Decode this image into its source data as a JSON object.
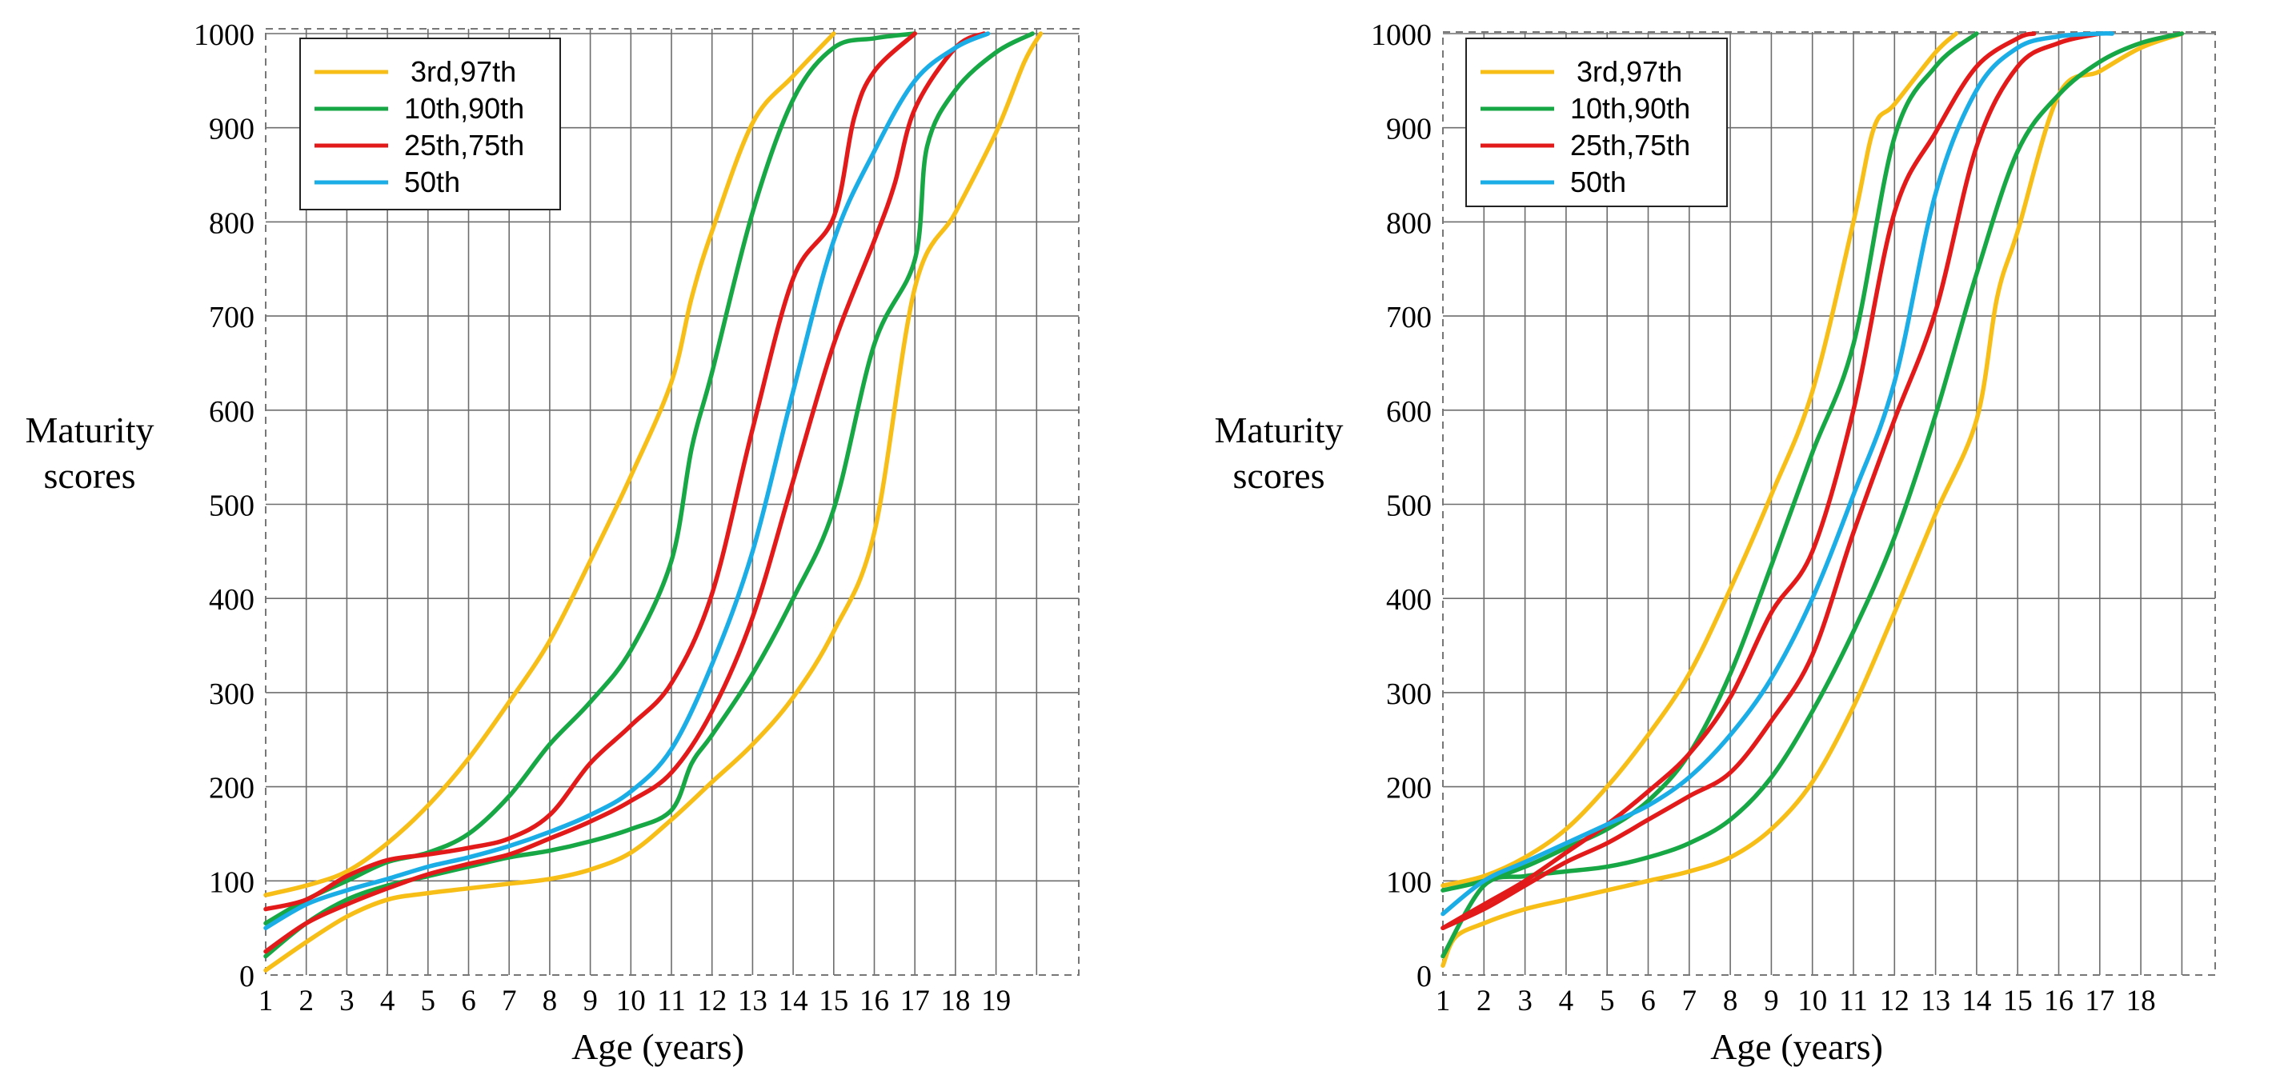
{
  "charts": [
    {
      "ylabel": [
        "Maturity",
        "scores"
      ],
      "xlabel": "Age (years)",
      "yticks": [
        "0",
        "100",
        "200",
        "300",
        "400",
        "500",
        "600",
        "700",
        "800",
        "900",
        "1000"
      ],
      "xticks": [
        "1",
        "2",
        "3",
        "4",
        "5",
        "6",
        "7",
        "8",
        "9",
        "10",
        "11",
        "12",
        "13",
        "14",
        "15",
        "16",
        "17",
        "18",
        "19"
      ],
      "legend": [
        {
          "label": "3rd,97th",
          "color": "#F7BE17"
        },
        {
          "label": "10th,90th",
          "color": "#17A745"
        },
        {
          "label": "25th,75th",
          "color": "#E31A1A"
        },
        {
          "label": "50th",
          "color": "#1AADE6"
        }
      ]
    },
    {
      "ylabel": [
        "Maturity",
        "scores"
      ],
      "xlabel": "Age (years)",
      "yticks": [
        "0",
        "100",
        "200",
        "300",
        "400",
        "500",
        "600",
        "700",
        "800",
        "900",
        "1000"
      ],
      "xticks": [
        "1",
        "2",
        "3",
        "4",
        "5",
        "6",
        "7",
        "8",
        "9",
        "10",
        "11",
        "12",
        "13",
        "14",
        "15",
        "16",
        "17",
        "18"
      ],
      "legend": [
        {
          "label": "3rd,97th",
          "color": "#F7BE17"
        },
        {
          "label": "10th,90th",
          "color": "#17A745"
        },
        {
          "label": "25th,75th",
          "color": "#E31A1A"
        },
        {
          "label": "50th",
          "color": "#1AADE6"
        }
      ]
    }
  ],
  "chart_data": [
    {
      "type": "line",
      "xlabel": "Age (years)",
      "ylabel": "Maturity scores",
      "xlim": [
        1,
        21
      ],
      "ylim": [
        0,
        1000
      ],
      "grid": true,
      "legend_position": "top-left",
      "series": [
        {
          "name": "3rd,97th",
          "group": "3rd",
          "color": "#F7BE17",
          "x": [
            1,
            2,
            3,
            4,
            5,
            6,
            7,
            8,
            9,
            10,
            11,
            12,
            13,
            14,
            15,
            16,
            17,
            18,
            19,
            19.7,
            20.1
          ],
          "y": [
            5,
            35,
            62,
            80,
            87,
            92,
            97,
            102,
            112,
            130,
            165,
            205,
            245,
            295,
            365,
            470,
            730,
            810,
            895,
            970,
            1000
          ]
        },
        {
          "name": "3rd,97th",
          "group": "97th",
          "color": "#F7BE17",
          "x": [
            1,
            2,
            3,
            4,
            5,
            6,
            7,
            8,
            9,
            10,
            11,
            11.5,
            12,
            13,
            14,
            15
          ],
          "y": [
            85,
            95,
            110,
            140,
            180,
            230,
            290,
            355,
            440,
            530,
            630,
            720,
            790,
            905,
            955,
            1000
          ]
        },
        {
          "name": "10th,90th",
          "group": "10th",
          "color": "#17A745",
          "x": [
            1,
            2,
            3,
            4,
            5,
            6,
            7,
            8,
            9,
            10,
            11,
            11.5,
            12,
            13,
            14,
            15,
            16,
            17,
            17.3,
            18,
            19,
            19.9
          ],
          "y": [
            20,
            55,
            80,
            95,
            105,
            115,
            125,
            132,
            142,
            155,
            175,
            225,
            255,
            320,
            400,
            495,
            670,
            760,
            880,
            940,
            980,
            1000
          ]
        },
        {
          "name": "10th,90th",
          "group": "90th",
          "color": "#17A745",
          "x": [
            1,
            2,
            3,
            4,
            5,
            6,
            7,
            8,
            9,
            10,
            11,
            11.5,
            12,
            13,
            14,
            15,
            16,
            17
          ],
          "y": [
            55,
            80,
            100,
            120,
            130,
            150,
            190,
            245,
            290,
            345,
            440,
            560,
            640,
            810,
            930,
            985,
            995,
            1000
          ]
        },
        {
          "name": "25th,75th",
          "group": "25th",
          "color": "#E31A1A",
          "x": [
            1,
            2,
            3,
            4,
            5,
            6,
            7,
            8,
            9,
            10,
            11,
            12,
            13,
            14,
            15,
            16,
            16.5,
            17,
            18,
            18.7
          ],
          "y": [
            25,
            55,
            75,
            92,
            107,
            118,
            128,
            145,
            163,
            185,
            215,
            280,
            380,
            525,
            670,
            780,
            840,
            920,
            985,
            1000
          ]
        },
        {
          "name": "25th,75th",
          "group": "75th",
          "color": "#E31A1A",
          "x": [
            1,
            2,
            3,
            4,
            5,
            6,
            7,
            8,
            9,
            10,
            11,
            12,
            13,
            14,
            15,
            15.5,
            16,
            17
          ],
          "y": [
            70,
            80,
            105,
            122,
            128,
            135,
            145,
            170,
            225,
            265,
            310,
            405,
            580,
            740,
            805,
            910,
            960,
            1000
          ]
        },
        {
          "name": "50th",
          "group": "50th",
          "color": "#1AADE6",
          "x": [
            1,
            2,
            3,
            4,
            5,
            6,
            7,
            8,
            9,
            10,
            11,
            12,
            13,
            14,
            15,
            16,
            17,
            18,
            18.8
          ],
          "y": [
            50,
            75,
            90,
            102,
            115,
            125,
            137,
            152,
            170,
            195,
            240,
            330,
            450,
            620,
            780,
            875,
            950,
            985,
            1000
          ]
        }
      ]
    },
    {
      "type": "line",
      "xlabel": "Age (years)",
      "ylabel": "Maturity scores",
      "xlim": [
        1,
        20
      ],
      "ylim": [
        0,
        1000
      ],
      "grid": true,
      "legend_position": "top-left",
      "series": [
        {
          "name": "3rd,97th",
          "group": "3rd",
          "color": "#F7BE17",
          "x": [
            1,
            1.3,
            2,
            3,
            4,
            5,
            6,
            7,
            8,
            9,
            10,
            11,
            12,
            13,
            14,
            14.5,
            15,
            16,
            17,
            18,
            19
          ],
          "y": [
            10,
            40,
            55,
            70,
            80,
            90,
            100,
            110,
            125,
            155,
            205,
            285,
            385,
            490,
            590,
            720,
            790,
            935,
            960,
            985,
            1000
          ]
        },
        {
          "name": "3rd,97th",
          "group": "97th",
          "color": "#F7BE17",
          "x": [
            1,
            2,
            3,
            4,
            5,
            6,
            7,
            8,
            9,
            10,
            11,
            11.5,
            12,
            13,
            13.5
          ],
          "y": [
            95,
            105,
            125,
            155,
            200,
            255,
            320,
            410,
            510,
            620,
            800,
            900,
            925,
            980,
            1000
          ]
        },
        {
          "name": "10th,90th",
          "group": "10th",
          "color": "#17A745",
          "x": [
            1,
            2,
            3,
            4,
            5,
            6,
            7,
            8,
            9,
            10,
            11,
            12,
            13,
            14,
            15,
            16,
            17,
            18,
            19
          ],
          "y": [
            20,
            95,
            105,
            110,
            115,
            125,
            140,
            165,
            210,
            280,
            365,
            465,
            595,
            745,
            875,
            935,
            970,
            990,
            1000
          ]
        },
        {
          "name": "10th,90th",
          "group": "90th",
          "color": "#17A745",
          "x": [
            1,
            2,
            3,
            4,
            5,
            6,
            7,
            8,
            9,
            10,
            11,
            12,
            13,
            14
          ],
          "y": [
            90,
            100,
            115,
            135,
            155,
            185,
            235,
            320,
            435,
            555,
            670,
            890,
            965,
            1000
          ]
        },
        {
          "name": "25th,75th",
          "group": "25th",
          "color": "#E31A1A",
          "x": [
            1,
            2,
            3,
            4,
            5,
            6,
            7,
            8,
            9,
            10,
            11,
            12,
            13,
            14,
            15,
            16,
            17
          ],
          "y": [
            50,
            70,
            95,
            120,
            140,
            165,
            190,
            215,
            270,
            340,
            470,
            590,
            705,
            880,
            965,
            990,
            1000
          ]
        },
        {
          "name": "25th,75th",
          "group": "75th",
          "color": "#E31A1A",
          "x": [
            1,
            2,
            3,
            4,
            5,
            6,
            7,
            8,
            9,
            10,
            11,
            12,
            13,
            14,
            15,
            15.4
          ],
          "y": [
            50,
            75,
            100,
            130,
            160,
            195,
            235,
            295,
            385,
            450,
            600,
            810,
            895,
            965,
            995,
            1000
          ]
        },
        {
          "name": "50th",
          "group": "50th",
          "color": "#1AADE6",
          "x": [
            1,
            2,
            3,
            4,
            5,
            6,
            7,
            8,
            9,
            10,
            11,
            12,
            13,
            14,
            15,
            16,
            17,
            17.3
          ],
          "y": [
            65,
            100,
            120,
            140,
            160,
            180,
            210,
            255,
            315,
            400,
            510,
            630,
            830,
            940,
            985,
            997,
            1000,
            1000
          ]
        }
      ]
    }
  ]
}
